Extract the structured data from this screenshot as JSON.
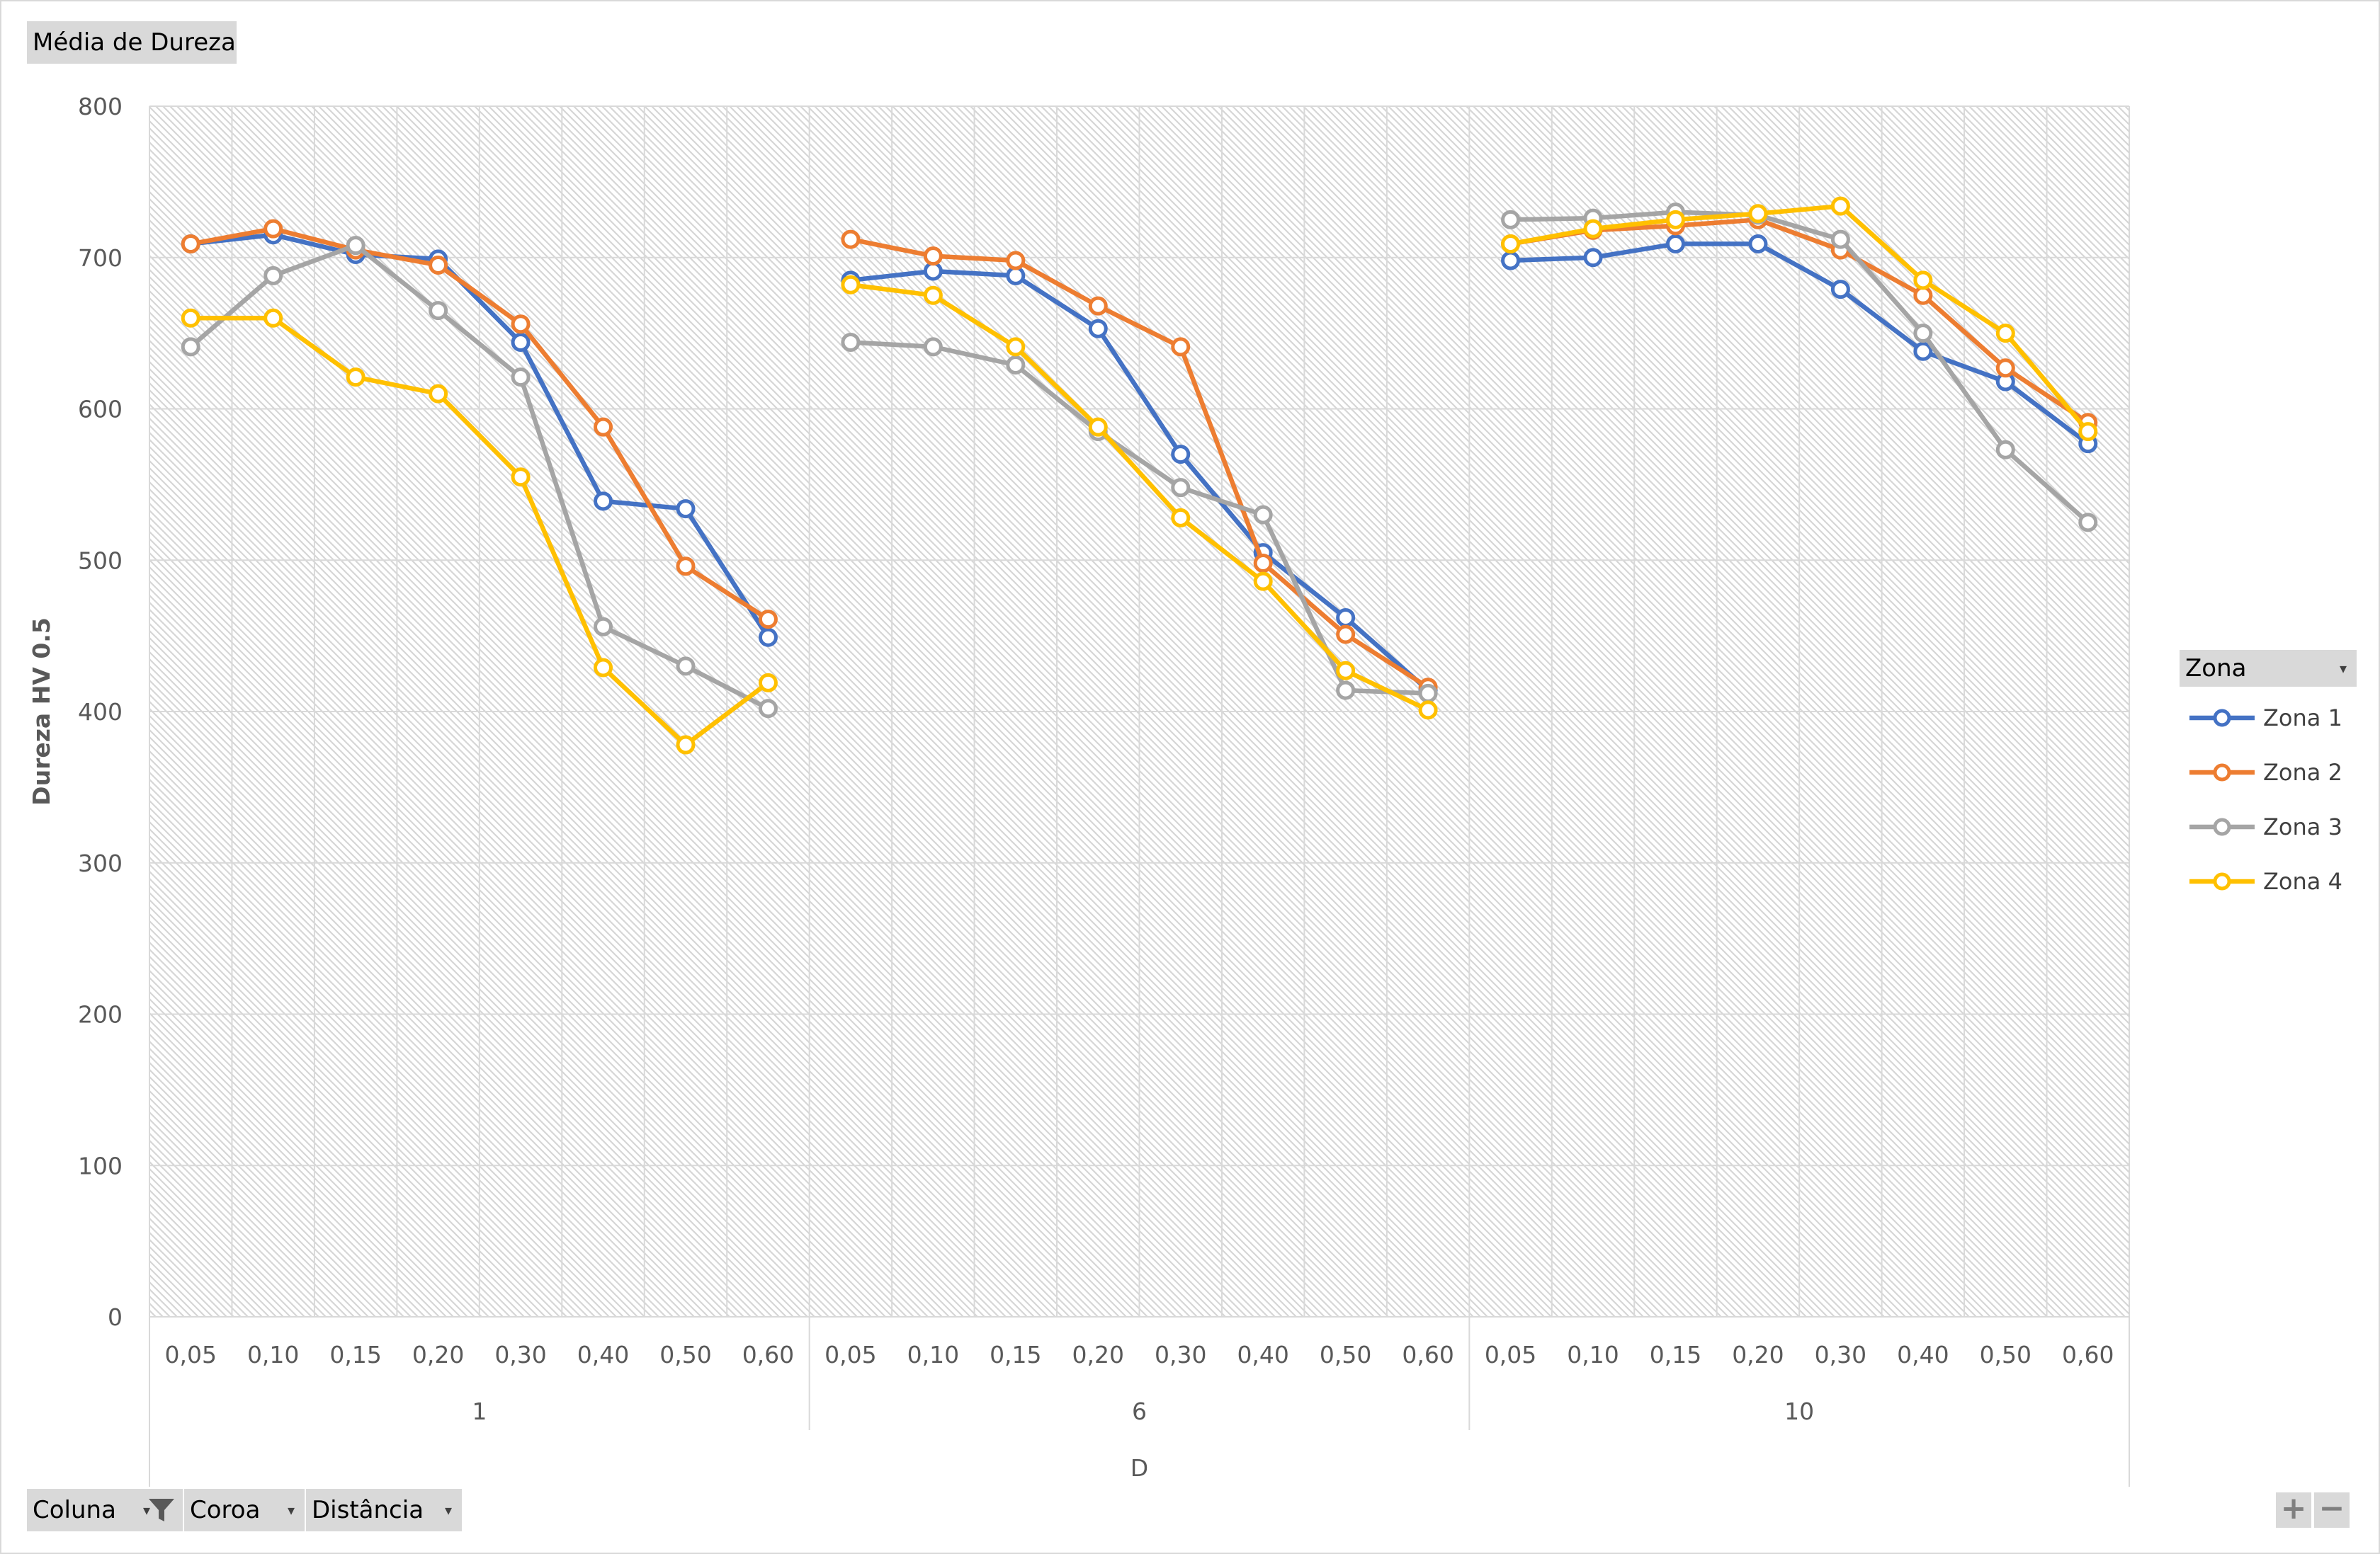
{
  "pivot": {
    "value_field": "Média de Dureza",
    "legend_field": "Zona",
    "axis_fields": [
      "Coluna",
      "Coroa",
      "Distância"
    ],
    "zoom_in": "+",
    "zoom_out": "−"
  },
  "colors": {
    "Zona 1": "#4472c4",
    "Zona 2": "#ed7d31",
    "Zona 3": "#a5a5a5",
    "Zona 4": "#ffc000"
  },
  "chart_data": {
    "type": "line",
    "title": "",
    "xlabel": "D",
    "ylabel": "Dureza HV 0.5",
    "ylim": [
      0,
      800
    ],
    "yticks": [
      0,
      100,
      200,
      300,
      400,
      500,
      600,
      700,
      800
    ],
    "grid": true,
    "legend_position": "right",
    "markers": "open-circle",
    "groups": [
      {
        "label": "1",
        "categories": [
          "0,05",
          "0,10",
          "0,15",
          "0,20",
          "0,30",
          "0,40",
          "0,50",
          "0,60"
        ]
      },
      {
        "label": "6",
        "categories": [
          "0,05",
          "0,10",
          "0,15",
          "0,20",
          "0,30",
          "0,40",
          "0,50",
          "0,60"
        ]
      },
      {
        "label": "10",
        "categories": [
          "0,05",
          "0,10",
          "0,15",
          "0,20",
          "0,30",
          "0,40",
          "0,50",
          "0,60"
        ]
      }
    ],
    "series": [
      {
        "name": "Zona 1",
        "values": [
          [
            709,
            715,
            702,
            699,
            644,
            539,
            534,
            449
          ],
          [
            685,
            691,
            688,
            653,
            570,
            505,
            462,
            414
          ],
          [
            698,
            700,
            709,
            709,
            679,
            638,
            618,
            577
          ]
        ]
      },
      {
        "name": "Zona 2",
        "values": [
          [
            709,
            719,
            705,
            695,
            656,
            588,
            496,
            461
          ],
          [
            712,
            701,
            698,
            668,
            641,
            498,
            451,
            416
          ],
          [
            709,
            718,
            721,
            725,
            705,
            675,
            627,
            591
          ]
        ]
      },
      {
        "name": "Zona 3",
        "values": [
          [
            641,
            688,
            708,
            665,
            621,
            456,
            430,
            402
          ],
          [
            644,
            641,
            629,
            585,
            548,
            530,
            414,
            412
          ],
          [
            725,
            726,
            730,
            728,
            712,
            650,
            573,
            525
          ]
        ]
      },
      {
        "name": "Zona 4",
        "values": [
          [
            660,
            660,
            621,
            610,
            555,
            429,
            378,
            419
          ],
          [
            682,
            675,
            641,
            588,
            528,
            486,
            427,
            401
          ],
          [
            709,
            719,
            725,
            729,
            734,
            685,
            650,
            585
          ]
        ]
      }
    ]
  }
}
